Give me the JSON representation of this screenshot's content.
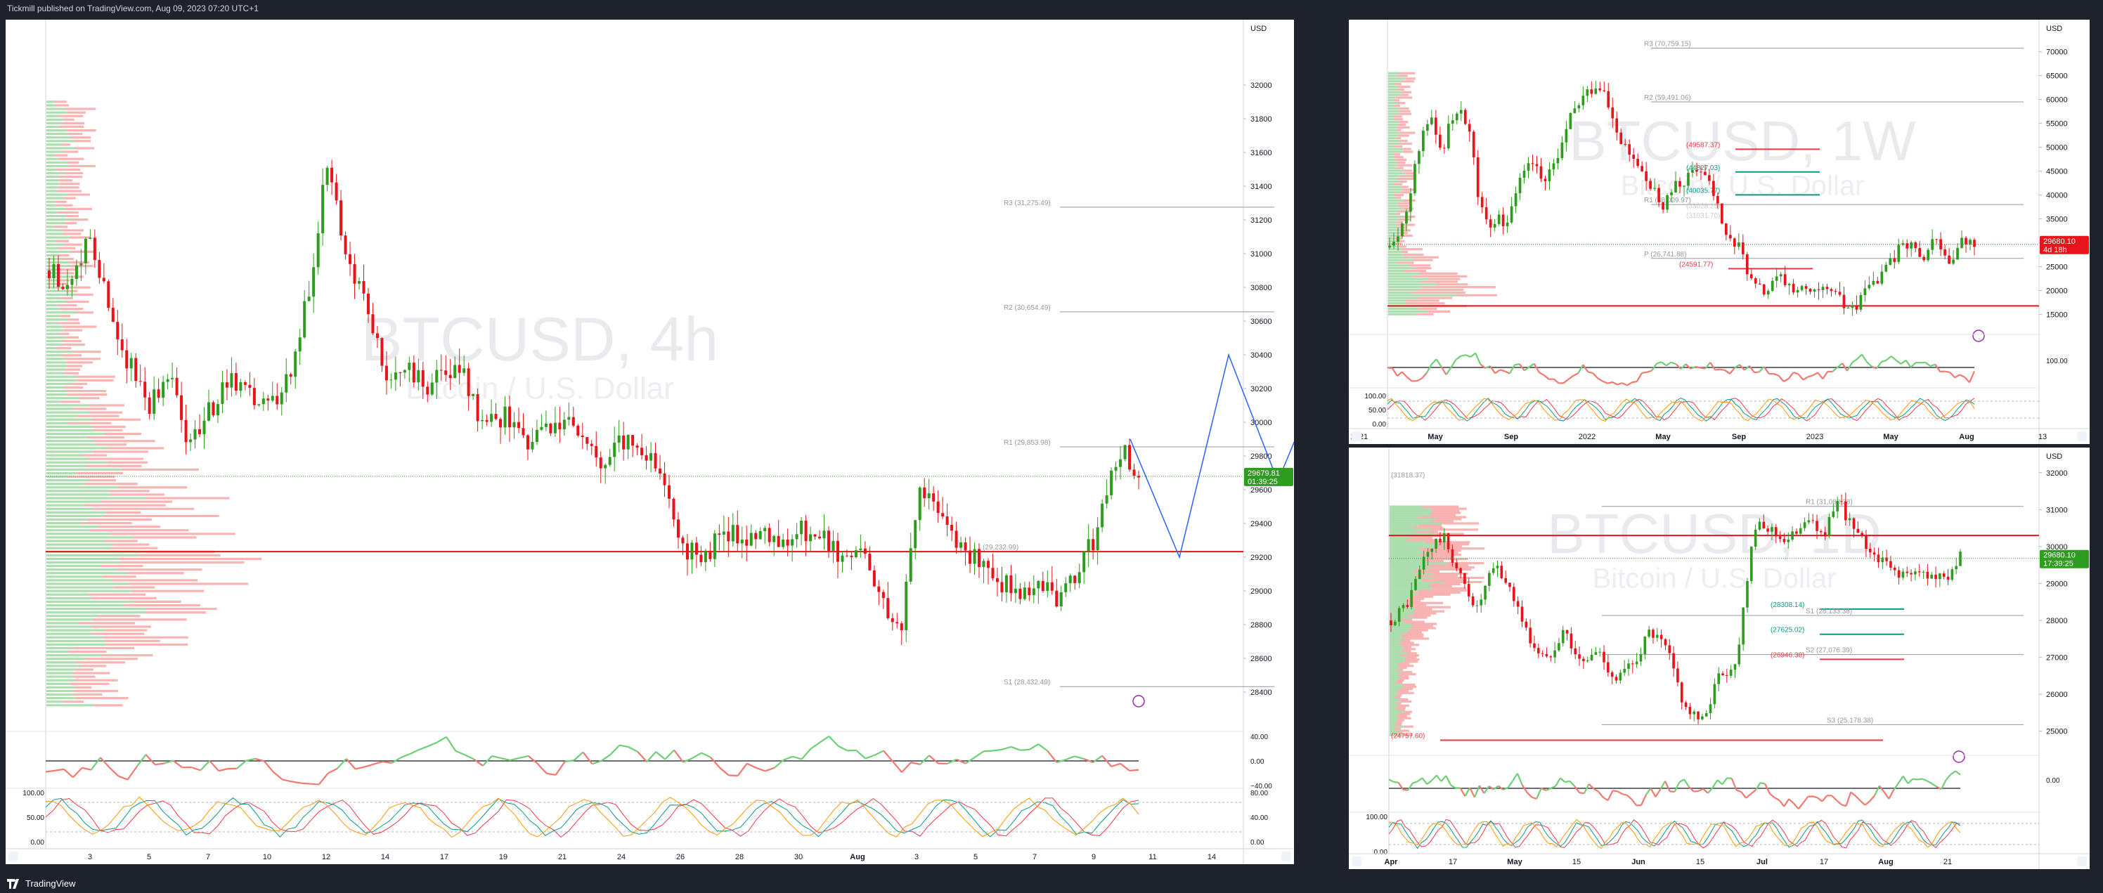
{
  "header": {
    "published": "Tickmill published on TradingView.com, Aug 09, 2023 07:20 UTC+1"
  },
  "footer": {
    "brand": "TradingView"
  },
  "currency": "USD",
  "panels": {
    "left": {
      "watermark_symbol": "BTCUSD, 4h",
      "watermark_name": "Bitcoin / U.S. Dollar",
      "price_tag": [
        "29679.81",
        "01:39:25"
      ],
      "pivot_labels": [
        "R3 (31,275.49)",
        "R2 (30,654.49)",
        "R1 (29,853.98)",
        "S1 (28,432.49)",
        "(29,232.99)"
      ]
    },
    "top_right": {
      "watermark_symbol": "BTCUSD, 1W",
      "watermark_name": "Bitcoin / U.S. Dollar",
      "price_tag": [
        "29680.10",
        "4d 18h"
      ],
      "pivot_labels": [
        "R3 (70,759.15)",
        "R2 (59,491.06)",
        "(49587.37)",
        "(44827.03)",
        "(40035.77)",
        "R1 (38,009.97)",
        "(33028.25)",
        "(31031.70)",
        "P (26,741.88)",
        "(24591.77)"
      ]
    },
    "bottom_right": {
      "watermark_symbol": "BTCUSD, 1D",
      "watermark_name": "Bitcoin / U.S. Dollar",
      "price_tag": [
        "29680.10",
        "17:39:25"
      ],
      "pivot_labels": [
        "(31818.37)",
        "R1 (31,088.38)",
        "(28308.14)",
        "S1 (28,133.38)",
        "(27625.02)",
        "(26946.38)",
        "S2 (27,076.39)",
        "S3 (25,178.38)",
        "(24757.60)"
      ]
    }
  },
  "chart_data": [
    {
      "type": "candlestick",
      "panel": "left",
      "title": "BTCUSD, 4h",
      "subtitle": "Bitcoin / U.S. Dollar",
      "y_ticks": [
        32000,
        31800,
        31600,
        31400,
        31200,
        31000,
        30800,
        30600,
        30400,
        30200,
        30000,
        29800,
        29600,
        29400,
        29200,
        29000,
        28800,
        28600,
        28400
      ],
      "ylim": [
        28200,
        32200
      ],
      "x_ticks": [
        "3",
        "5",
        "7",
        "10",
        "12",
        "14",
        "17",
        "19",
        "21",
        "24",
        "26",
        "28",
        "30",
        "Aug",
        "3",
        "5",
        "7",
        "9",
        "11",
        "14"
      ],
      "last_price": 29679.81,
      "countdown": "01:39:25",
      "levels": [
        {
          "label": "R3 (31,275.49)",
          "value": 31275.49
        },
        {
          "label": "R2 (30,654.49)",
          "value": 30654.49
        },
        {
          "label": "R1 (29,853.98)",
          "value": 29853.98
        },
        {
          "label": "S1 (28,432.49)",
          "value": 28432.49
        }
      ],
      "sub_axes": {
        "rsi": [
          "40.00",
          "0.00",
          "−40.00"
        ],
        "stoch": [
          "100.00",
          "50.00",
          "0.00"
        ],
        "stoch_extra": [
          "80.00",
          "40.00",
          "0.00"
        ]
      },
      "close_path": [
        30900,
        30820,
        31100,
        30700,
        30350,
        30100,
        30300,
        29900,
        30050,
        30250,
        30150,
        30100,
        30250,
        30700,
        31500,
        31000,
        30700,
        30250,
        30350,
        30200,
        30300,
        30250,
        29950,
        30050,
        29850,
        29950,
        30050,
        29900,
        29750,
        29900,
        29850,
        29700,
        29250,
        29200,
        29350,
        29300,
        29400,
        29250,
        29350,
        29300,
        29200,
        29250,
        28950,
        28800,
        29650,
        29400,
        29250,
        29150,
        29050,
        29000,
        29050,
        28950,
        29100,
        29400,
        29850,
        29680
      ],
      "projection": [
        29900,
        29200,
        30400,
        29650,
        30350
      ]
    },
    {
      "type": "candlestick",
      "panel": "top_right",
      "title": "BTCUSD, 1W",
      "subtitle": "Bitcoin / U.S. Dollar",
      "y_ticks": [
        70000,
        65000,
        60000,
        55000,
        50000,
        45000,
        40000,
        35000,
        30000,
        25000,
        20000,
        15000
      ],
      "ylim": [
        12000,
        72000
      ],
      "x_ticks": [
        "2021",
        "May",
        "Sep",
        "2022",
        "May",
        "Sep",
        "2023",
        "May",
        "Aug",
        "13"
      ],
      "last_price": 29680.1,
      "countdown": "4d 18h",
      "levels": [
        {
          "label": "R3 (70,759.15)",
          "value": 70759.15
        },
        {
          "label": "R2 (59,491.06)",
          "value": 59491.06
        },
        {
          "label": "R1 (38,009.97)",
          "value": 38009.97
        },
        {
          "label": "P (26,741.88)",
          "value": 26741.88
        }
      ],
      "sub_axes": {
        "rsi": [
          "100.00"
        ],
        "stoch": [
          "100.00",
          "50.00",
          "0.00"
        ]
      },
      "close_path": [
        29000,
        33000,
        47000,
        57000,
        49000,
        58000,
        55000,
        37000,
        34000,
        35000,
        42000,
        47000,
        43000,
        48000,
        57000,
        61000,
        64000,
        57000,
        50000,
        47000,
        42000,
        38000,
        42000,
        44000,
        46000,
        40000,
        31000,
        29000,
        21000,
        20000,
        23000,
        21000,
        20000,
        19500,
        20000,
        17000,
        16800,
        21000,
        23000,
        28000,
        29000,
        27000,
        30000,
        26000,
        30500,
        29700
      ]
    },
    {
      "type": "candlestick",
      "panel": "bottom_right",
      "title": "BTCUSD, 1D",
      "subtitle": "Bitcoin / U.S. Dollar",
      "y_ticks": [
        32000,
        31000,
        30000,
        29000,
        28000,
        27000,
        26000,
        25000
      ],
      "ylim": [
        24500,
        32300
      ],
      "x_ticks": [
        "Apr",
        "17",
        "May",
        "15",
        "Jun",
        "15",
        "Jul",
        "17",
        "Aug",
        "21"
      ],
      "last_price": 29680.1,
      "countdown": "17:39:25",
      "levels": [
        {
          "label": "R1 (31,088.38)",
          "value": 31088.38
        },
        {
          "label": "S1 (28,133.38)",
          "value": 28133.38
        },
        {
          "label": "S2 (27,076.39)",
          "value": 27076.39
        },
        {
          "label": "S3 (25,178.38)",
          "value": 25178.38
        }
      ],
      "sub_axes": {
        "rsi": [
          "0.00"
        ],
        "stoch": [
          "100.00",
          "0.00"
        ]
      },
      "close_path": [
        28000,
        28500,
        29800,
        30300,
        29200,
        28300,
        29500,
        28800,
        27500,
        26900,
        27800,
        26800,
        27200,
        26400,
        26800,
        27700,
        27200,
        25700,
        25200,
        26500,
        26800,
        30500,
        30500,
        30100,
        30800,
        30300,
        31200,
        30300,
        29800,
        29400,
        29200,
        29300,
        29100,
        29700
      ]
    }
  ]
}
